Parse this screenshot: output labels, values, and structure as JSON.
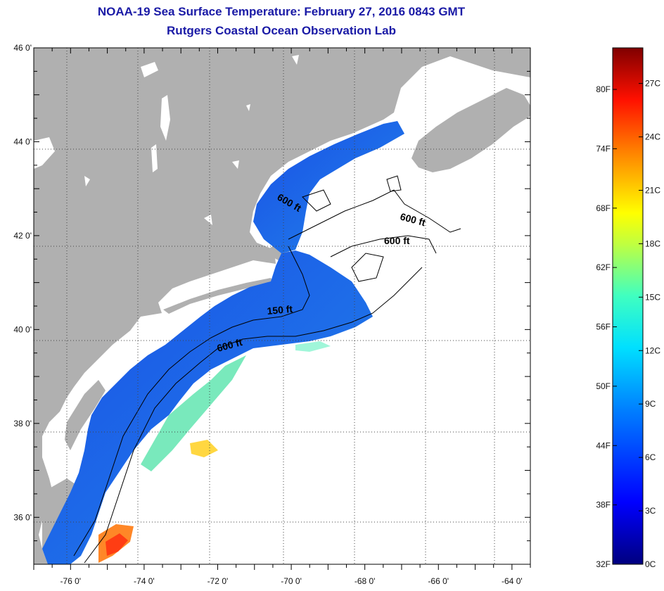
{
  "title": {
    "line1": "NOAA-19 Sea Surface Temperature:  February 27, 2016 0843 GMT",
    "line2": "Rutgers Coastal Ocean Observation Lab"
  },
  "map": {
    "lat_range": [
      35,
      46
    ],
    "lon_range": [
      -77,
      -63.5
    ],
    "lat_ticks": [
      {
        "value": 46,
        "label": "46 0'"
      },
      {
        "value": 44,
        "label": "44 0'"
      },
      {
        "value": 42,
        "label": "42 0'"
      },
      {
        "value": 40,
        "label": "40 0'"
      },
      {
        "value": 38,
        "label": "38 0'"
      },
      {
        "value": 36,
        "label": "36 0'"
      }
    ],
    "lon_ticks": [
      {
        "value": -76,
        "label": "-76 0'"
      },
      {
        "value": -74,
        "label": "-74 0'"
      },
      {
        "value": -72,
        "label": "-72 0'"
      },
      {
        "value": -70,
        "label": "-70 0'"
      },
      {
        "value": -68,
        "label": "-68 0'"
      },
      {
        "value": -66,
        "label": "-66 0'"
      },
      {
        "value": -64,
        "label": "-64 0'"
      }
    ],
    "contour_labels": [
      "600 ft",
      "600 ft",
      "600 ft",
      "150 ft",
      "600 ft"
    ],
    "colors": {
      "land": "#b0b0b0",
      "cloud": "#ffffff",
      "frame": "#000000"
    }
  },
  "colorbar": {
    "fahrenheit": [
      "80F",
      "74F",
      "68F",
      "62F",
      "56F",
      "50F",
      "44F",
      "38F",
      "32F"
    ],
    "celsius": [
      "27C",
      "24C",
      "21C",
      "18C",
      "15C",
      "12C",
      "9C",
      "6C",
      "3C",
      "0C"
    ],
    "range_c": [
      0,
      29
    ]
  }
}
